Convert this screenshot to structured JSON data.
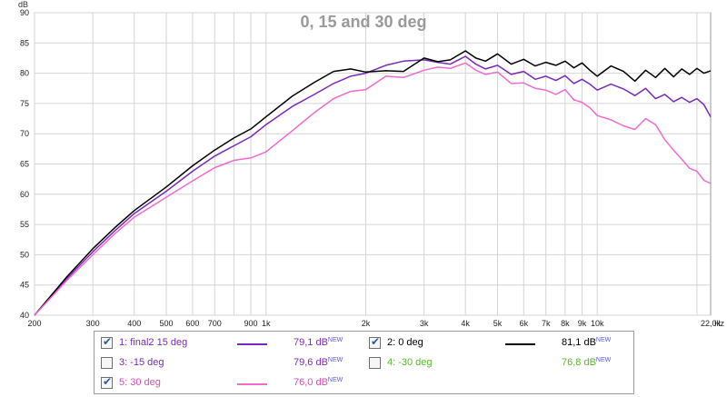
{
  "chart_data": {
    "type": "line",
    "title": "0, 15 and 30 deg",
    "ylabel": "dB",
    "x_scale": "log",
    "xlim": [
      200,
      22000
    ],
    "ylim": [
      40,
      90
    ],
    "x_unit": "Hz",
    "grid": true,
    "y_ticks": [
      40,
      45,
      50,
      55,
      60,
      65,
      70,
      75,
      80,
      85,
      90
    ],
    "x_ticks": [
      {
        "value": 200,
        "label": "200"
      },
      {
        "value": 300,
        "label": "300"
      },
      {
        "value": 400,
        "label": "400"
      },
      {
        "value": 500,
        "label": "500"
      },
      {
        "value": 600,
        "label": "600"
      },
      {
        "value": 700,
        "label": "700"
      },
      {
        "value": 900,
        "label": "900"
      },
      {
        "value": 1000,
        "label": "1k"
      },
      {
        "value": 2000,
        "label": "2k"
      },
      {
        "value": 3000,
        "label": "3k"
      },
      {
        "value": 4000,
        "label": "4k"
      },
      {
        "value": 5000,
        "label": "5k"
      },
      {
        "value": 6000,
        "label": "6k"
      },
      {
        "value": 7000,
        "label": "7k"
      },
      {
        "value": 8000,
        "label": "8k"
      },
      {
        "value": 9000,
        "label": "9k"
      },
      {
        "value": 10000,
        "label": "10k"
      },
      {
        "value": 22000,
        "label": "22,0k"
      }
    ],
    "x_unit_label": "Hz",
    "series": [
      {
        "name": "final2 15 deg",
        "color": "#7a2ab8",
        "points": [
          [
            200,
            40
          ],
          [
            250,
            46
          ],
          [
            300,
            50.5
          ],
          [
            350,
            54
          ],
          [
            400,
            56.8
          ],
          [
            500,
            60.5
          ],
          [
            600,
            63.8
          ],
          [
            700,
            66.3
          ],
          [
            800,
            68
          ],
          [
            900,
            69.5
          ],
          [
            1000,
            71.5
          ],
          [
            1200,
            74.5
          ],
          [
            1400,
            76.5
          ],
          [
            1600,
            78.3
          ],
          [
            1800,
            79.5
          ],
          [
            2000,
            80
          ],
          [
            2300,
            81.3
          ],
          [
            2600,
            82
          ],
          [
            3000,
            82.2
          ],
          [
            3300,
            81.8
          ],
          [
            3600,
            81.5
          ],
          [
            4000,
            82.8
          ],
          [
            4300,
            81.5
          ],
          [
            4600,
            80.7
          ],
          [
            5000,
            81.3
          ],
          [
            5500,
            79.8
          ],
          [
            6000,
            80.3
          ],
          [
            6500,
            79
          ],
          [
            7000,
            79.5
          ],
          [
            7500,
            78.8
          ],
          [
            8000,
            79.6
          ],
          [
            8500,
            78.3
          ],
          [
            9000,
            79
          ],
          [
            9500,
            78.2
          ],
          [
            10000,
            77.2
          ],
          [
            11000,
            78.2
          ],
          [
            12000,
            77.4
          ],
          [
            13000,
            76.3
          ],
          [
            14000,
            77.5
          ],
          [
            15000,
            75.8
          ],
          [
            16000,
            76.5
          ],
          [
            17000,
            75.3
          ],
          [
            18000,
            76
          ],
          [
            19000,
            75.2
          ],
          [
            20000,
            75.8
          ],
          [
            21000,
            74.8
          ],
          [
            22000,
            72.8
          ]
        ]
      },
      {
        "name": "0 deg",
        "color": "#000000",
        "points": [
          [
            200,
            40
          ],
          [
            250,
            46.3
          ],
          [
            300,
            51
          ],
          [
            350,
            54.5
          ],
          [
            400,
            57.3
          ],
          [
            500,
            61.2
          ],
          [
            600,
            64.7
          ],
          [
            700,
            67.3
          ],
          [
            800,
            69.3
          ],
          [
            900,
            70.8
          ],
          [
            1000,
            72.8
          ],
          [
            1200,
            76.2
          ],
          [
            1400,
            78.5
          ],
          [
            1600,
            80.3
          ],
          [
            1800,
            80.7
          ],
          [
            2000,
            80.2
          ],
          [
            2300,
            80.4
          ],
          [
            2600,
            80.3
          ],
          [
            3000,
            82.5
          ],
          [
            3300,
            81.9
          ],
          [
            3600,
            82.2
          ],
          [
            4000,
            83.7
          ],
          [
            4300,
            82.5
          ],
          [
            4600,
            82
          ],
          [
            5000,
            83.2
          ],
          [
            5500,
            81.5
          ],
          [
            6000,
            82.3
          ],
          [
            6500,
            81.2
          ],
          [
            7000,
            81.8
          ],
          [
            7500,
            81.3
          ],
          [
            8000,
            82
          ],
          [
            8500,
            80.9
          ],
          [
            9000,
            81.7
          ],
          [
            9500,
            80.5
          ],
          [
            10000,
            79.5
          ],
          [
            11000,
            81.2
          ],
          [
            12000,
            80.3
          ],
          [
            13000,
            78.7
          ],
          [
            14000,
            80.5
          ],
          [
            15000,
            79.3
          ],
          [
            16000,
            80.8
          ],
          [
            17000,
            79.4
          ],
          [
            18000,
            80.7
          ],
          [
            19000,
            79.8
          ],
          [
            20000,
            80.8
          ],
          [
            21000,
            80
          ],
          [
            22000,
            80.4
          ]
        ]
      },
      {
        "name": "30 deg",
        "color": "#f06ad0",
        "points": [
          [
            200,
            40
          ],
          [
            250,
            45.7
          ],
          [
            300,
            50
          ],
          [
            350,
            53.5
          ],
          [
            400,
            56.2
          ],
          [
            500,
            59.5
          ],
          [
            600,
            62.2
          ],
          [
            700,
            64.4
          ],
          [
            800,
            65.6
          ],
          [
            900,
            66
          ],
          [
            1000,
            67
          ],
          [
            1200,
            70.5
          ],
          [
            1400,
            73.5
          ],
          [
            1600,
            75.8
          ],
          [
            1800,
            77
          ],
          [
            2000,
            77.3
          ],
          [
            2300,
            79.5
          ],
          [
            2600,
            79.3
          ],
          [
            3000,
            80.5
          ],
          [
            3300,
            81
          ],
          [
            3600,
            80.8
          ],
          [
            4000,
            81.7
          ],
          [
            4300,
            80.5
          ],
          [
            4600,
            79.8
          ],
          [
            5000,
            80.2
          ],
          [
            5500,
            78.3
          ],
          [
            6000,
            78.4
          ],
          [
            6500,
            77.5
          ],
          [
            7000,
            77.2
          ],
          [
            7500,
            76.5
          ],
          [
            8000,
            77.3
          ],
          [
            8500,
            75.6
          ],
          [
            9000,
            75.2
          ],
          [
            9500,
            74.3
          ],
          [
            10000,
            73
          ],
          [
            11000,
            72.3
          ],
          [
            12000,
            71.3
          ],
          [
            13000,
            70.7
          ],
          [
            14000,
            72.5
          ],
          [
            15000,
            71.5
          ],
          [
            16000,
            69
          ],
          [
            17000,
            67.3
          ],
          [
            18000,
            65.8
          ],
          [
            19000,
            64.3
          ],
          [
            20000,
            63.8
          ],
          [
            21000,
            62.3
          ],
          [
            22000,
            61.8
          ]
        ]
      }
    ]
  },
  "legend": [
    {
      "label": "1: final2 15 deg",
      "value": "79,1 dB",
      "checked": true,
      "text_color": "#7a2ab8",
      "swatch": "#7a2ab8"
    },
    {
      "label": "2: 0 deg",
      "value": "81,1 dB",
      "checked": true,
      "text_color": "#000000",
      "swatch": "#000000"
    },
    {
      "label": "3: -15 deg",
      "value": "79,6 dB",
      "checked": false,
      "text_color": "#7a2ab8",
      "swatch": ""
    },
    {
      "label": "4: -30 deg",
      "value": "76,8 dB",
      "checked": false,
      "text_color": "#59b82a",
      "swatch": ""
    },
    {
      "label": "5: 30 deg",
      "value": "76,0 dB",
      "checked": true,
      "text_color": "#d050b8",
      "swatch": "#f06ad0"
    }
  ],
  "legend_value_suffix": "NEW"
}
